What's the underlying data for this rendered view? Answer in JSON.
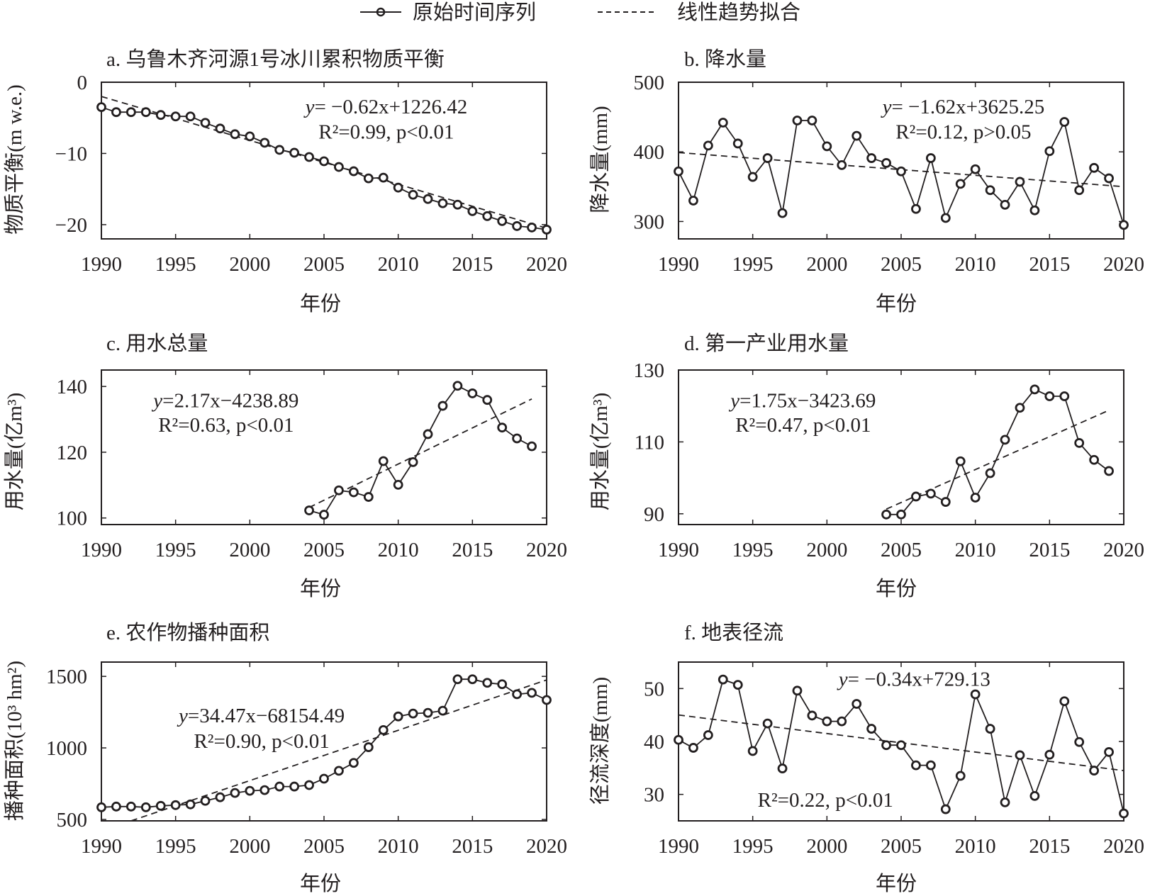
{
  "legend": {
    "items": [
      {
        "label": "原始时间序列",
        "style": "solid-line-circle-marker"
      },
      {
        "label": "线性趋势拟合",
        "style": "dashed-line"
      }
    ]
  },
  "colors": {
    "ink": "#231f20",
    "background": "#ffffff"
  },
  "chart_data": [
    {
      "id": "a",
      "type": "line",
      "title": "a. 乌鲁木齐河源1号冰川累积物质平衡",
      "xlabel": "年份",
      "ylabel": "物质平衡(m w.e.)",
      "xlim": [
        1990,
        2020
      ],
      "ylim": [
        -22,
        0
      ],
      "xticks": [
        1990,
        1995,
        2000,
        2005,
        2010,
        2015,
        2020
      ],
      "yticks": [
        0,
        -10,
        -20
      ],
      "ytick_labels": [
        "0",
        "−10",
        "−20"
      ],
      "grid": false,
      "x": [
        1990,
        1991,
        1992,
        1993,
        1994,
        1995,
        1996,
        1997,
        1998,
        1999,
        2000,
        2001,
        2002,
        2003,
        2004,
        2005,
        2006,
        2007,
        2008,
        2009,
        2010,
        2011,
        2012,
        2013,
        2014,
        2015,
        2016,
        2017,
        2018,
        2019,
        2020
      ],
      "series": [
        {
          "name": "原始时间序列",
          "values": [
            -3.5,
            -4.2,
            -4.2,
            -4.2,
            -4.6,
            -4.8,
            -4.8,
            -5.7,
            -6.5,
            -7.3,
            -7.6,
            -8.5,
            -9.5,
            -9.9,
            -10.5,
            -11.1,
            -11.9,
            -12.5,
            -13.5,
            -13.4,
            -14.8,
            -15.8,
            -16.4,
            -17.0,
            -17.2,
            -18.1,
            -18.8,
            -19.5,
            -20.2,
            -20.4,
            -20.7
          ]
        }
      ],
      "trend": {
        "slope": -0.62,
        "intercept": 1226.42,
        "x_range": [
          1990,
          2020
        ],
        "y_start": -2.0,
        "y_end": -20.5
      },
      "annotation": {
        "line1_prefix": "y",
        "line1_rest": "= −0.62x+1226.42",
        "r2": "R²=0.99, p<0.01",
        "placement": "top-right"
      }
    },
    {
      "id": "b",
      "type": "line",
      "title": "b. 降水量",
      "xlabel": "年份",
      "ylabel": "降水量(mm)",
      "xlim": [
        1990,
        2020
      ],
      "ylim": [
        275,
        500
      ],
      "xticks": [
        1990,
        1995,
        2000,
        2005,
        2010,
        2015,
        2020
      ],
      "yticks": [
        300,
        400,
        500
      ],
      "ytick_labels": [
        "300",
        "400",
        "500"
      ],
      "grid": false,
      "x": [
        1990,
        1991,
        1992,
        1993,
        1994,
        1995,
        1996,
        1997,
        1998,
        1999,
        2000,
        2001,
        2002,
        2003,
        2004,
        2005,
        2006,
        2007,
        2008,
        2009,
        2010,
        2011,
        2012,
        2013,
        2014,
        2015,
        2016,
        2017,
        2018,
        2019,
        2020
      ],
      "series": [
        {
          "name": "原始时间序列",
          "values": [
            372,
            330,
            409,
            442,
            412,
            364,
            391,
            312,
            445,
            445,
            408,
            381,
            423,
            391,
            384,
            372,
            318,
            391,
            305,
            354,
            375,
            345,
            324,
            357,
            316,
            401,
            443,
            345,
            377,
            362,
            295
          ]
        }
      ],
      "trend": {
        "slope": -1.62,
        "intercept": 3625.25,
        "x_range": [
          1990,
          2020
        ],
        "y_start": 399,
        "y_end": 350
      },
      "annotation": {
        "line1_prefix": "y",
        "line1_rest": "= −1.62x+3625.25",
        "r2": "R²=0.12, p>0.05",
        "placement": "top-right"
      }
    },
    {
      "id": "c",
      "type": "line",
      "title": "c. 用水总量",
      "xlabel": "年份",
      "ylabel": "用水量(亿m³)",
      "xlim": [
        1990,
        2020
      ],
      "ylim": [
        98,
        145
      ],
      "xticks": [
        1990,
        1995,
        2000,
        2005,
        2010,
        2015,
        2020
      ],
      "yticks": [
        100,
        120,
        140
      ],
      "ytick_labels": [
        "100",
        "120",
        "140"
      ],
      "grid": false,
      "x": [
        2004,
        2005,
        2006,
        2007,
        2008,
        2009,
        2010,
        2011,
        2012,
        2013,
        2014,
        2015,
        2016,
        2017,
        2018,
        2019
      ],
      "series": [
        {
          "name": "原始时间序列",
          "values": [
            102.3,
            101.0,
            108.4,
            107.8,
            106.4,
            117.3,
            110.1,
            117.0,
            125.5,
            134.1,
            140.2,
            137.9,
            135.9,
            127.5,
            124.2,
            121.8
          ]
        }
      ],
      "trend": {
        "slope": 2.17,
        "intercept": -4238.89,
        "x_range": [
          2004,
          2019
        ],
        "y_start": 103.2,
        "y_end": 136.2
      },
      "annotation": {
        "line1_prefix": "y",
        "line1_rest": "=2.17x−4238.89",
        "r2": "R²=0.63, p<0.01",
        "placement": "top-left"
      }
    },
    {
      "id": "d",
      "type": "line",
      "title": "d. 第一产业用水量",
      "xlabel": "年份",
      "ylabel": "用水量(亿m³)",
      "xlim": [
        1990,
        2020
      ],
      "ylim": [
        87,
        130
      ],
      "xticks": [
        1990,
        1995,
        2000,
        2005,
        2010,
        2015,
        2020
      ],
      "yticks": [
        90,
        110,
        130
      ],
      "ytick_labels": [
        "90",
        "110",
        "130"
      ],
      "grid": false,
      "x": [
        2004,
        2005,
        2006,
        2007,
        2008,
        2009,
        2010,
        2011,
        2012,
        2013,
        2014,
        2015,
        2016,
        2017,
        2018,
        2019
      ],
      "series": [
        {
          "name": "原始时间序列",
          "values": [
            89.8,
            89.8,
            94.8,
            95.6,
            93.3,
            104.6,
            94.5,
            101.3,
            110.6,
            119.5,
            124.6,
            122.7,
            122.7,
            109.7,
            105.0,
            101.9
          ]
        }
      ],
      "trend": {
        "slope": 1.75,
        "intercept": -3423.69,
        "x_range": [
          2004,
          2019
        ],
        "y_start": 91.3,
        "y_end": 118.8
      },
      "annotation": {
        "line1_prefix": "y",
        "line1_rest": "=1.75x−3423.69",
        "r2": "R²=0.47, p<0.01",
        "placement": "top-left"
      }
    },
    {
      "id": "e",
      "type": "line",
      "title": "e. 农作物播种面积",
      "xlabel": "年份",
      "ylabel": "播种面积(10³ hm²)",
      "xlim": [
        1990,
        2020
      ],
      "ylim": [
        490,
        1600
      ],
      "xticks": [
        1990,
        1995,
        2000,
        2005,
        2010,
        2015,
        2020
      ],
      "yticks": [
        500,
        1000,
        1500
      ],
      "ytick_labels": [
        "500",
        "1000",
        "1500"
      ],
      "grid": false,
      "x": [
        1990,
        1991,
        1992,
        1993,
        1994,
        1995,
        1996,
        1997,
        1998,
        1999,
        2000,
        2001,
        2002,
        2003,
        2004,
        2005,
        2006,
        2007,
        2008,
        2009,
        2010,
        2011,
        2012,
        2013,
        2014,
        2015,
        2016,
        2017,
        2018,
        2019,
        2020
      ],
      "series": [
        {
          "name": "原始时间序列",
          "values": [
            585,
            590,
            590,
            585,
            595,
            600,
            605,
            630,
            655,
            685,
            700,
            705,
            730,
            730,
            740,
            785,
            840,
            895,
            1005,
            1125,
            1220,
            1240,
            1245,
            1260,
            1480,
            1480,
            1455,
            1445,
            1375,
            1385,
            1335
          ]
        }
      ],
      "trend": {
        "slope": 34.47,
        "intercept": -68154.49,
        "x_range": [
          1992,
          2020
        ],
        "y_start": 490,
        "y_end": 1475
      },
      "annotation": {
        "line1_prefix": "y",
        "line1_rest": "=34.47x−68154.49",
        "r2": "R²=0.90, p<0.01",
        "placement": "center-left"
      }
    },
    {
      "id": "f",
      "type": "line",
      "title": "f. 地表径流",
      "xlabel": "年份",
      "ylabel": "径流深度(mm)",
      "xlim": [
        1990,
        2020
      ],
      "ylim": [
        25,
        55
      ],
      "xticks": [
        1990,
        1995,
        2000,
        2005,
        2010,
        2015,
        2020
      ],
      "yticks": [
        30,
        40,
        50
      ],
      "ytick_labels": [
        "30",
        "40",
        "50"
      ],
      "grid": false,
      "x": [
        1990,
        1991,
        1992,
        1993,
        1994,
        1995,
        1996,
        1997,
        1998,
        1999,
        2000,
        2001,
        2002,
        2003,
        2004,
        2005,
        2006,
        2007,
        2008,
        2009,
        2010,
        2011,
        2012,
        2013,
        2014,
        2015,
        2016,
        2017,
        2018,
        2019,
        2020
      ],
      "series": [
        {
          "name": "原始时间序列",
          "values": [
            40.3,
            38.8,
            41.2,
            51.7,
            50.7,
            38.2,
            43.4,
            34.9,
            49.6,
            44.9,
            43.8,
            43.8,
            47.1,
            42.4,
            39.3,
            39.3,
            35.5,
            35.5,
            27.2,
            33.5,
            48.9,
            42.4,
            28.5,
            37.4,
            29.7,
            37.5,
            47.6,
            39.9,
            34.5,
            38.0,
            26.4
          ]
        }
      ],
      "trend": {
        "slope": -0.34,
        "intercept": 729.13,
        "x_range": [
          1990,
          2020
        ],
        "y_start": 45.0,
        "y_end": 34.5
      },
      "annotation": {
        "line1_prefix": "y",
        "line1_rest": "= −0.34x+729.13",
        "r2": "R²=0.22, p<0.01",
        "placement": "split-top-bottom"
      }
    }
  ]
}
